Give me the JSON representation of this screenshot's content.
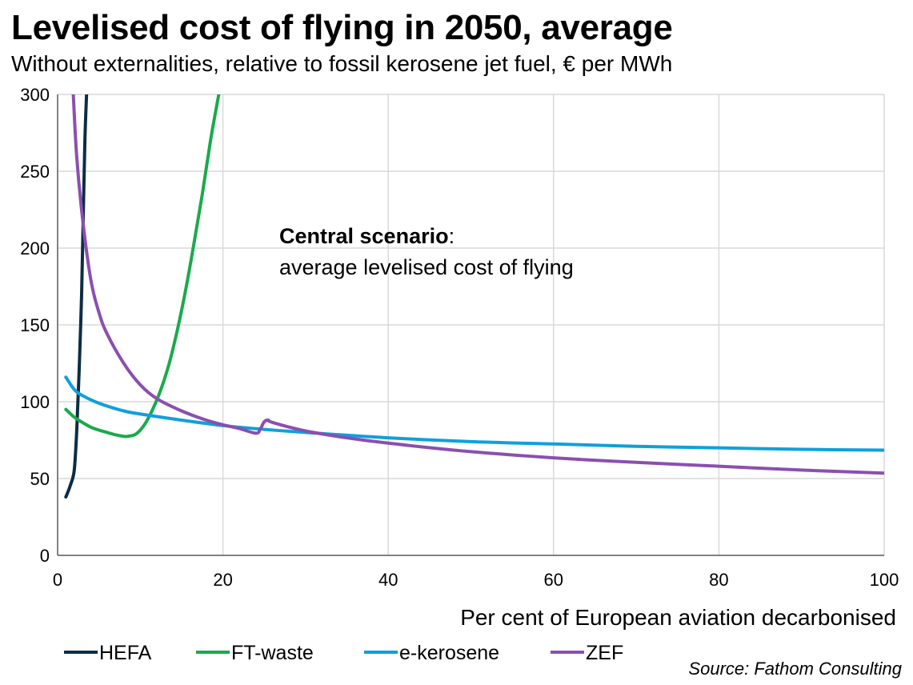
{
  "chart_data": {
    "type": "line",
    "title": "Levelised cost of flying in 2050, average",
    "subtitle": "Without externalities, relative to fossil kerosene jet fuel, € per MWh",
    "xlabel": "Per cent of European aviation decarbonised",
    "ylabel": "",
    "xlim": [
      0,
      100
    ],
    "ylim": [
      0,
      300
    ],
    "xticks": [
      0,
      20,
      40,
      60,
      80,
      100
    ],
    "yticks": [
      0,
      50,
      100,
      150,
      200,
      250,
      300
    ],
    "grid": true,
    "legend_position": "bottom",
    "annotation": {
      "bold": "Central scenario",
      "colon": ":",
      "line2": "average levelised cost of flying"
    },
    "source": "Source: Fathom Consulting",
    "series": [
      {
        "name": "HEFA",
        "color": "#0d2d45",
        "x": [
          1,
          1.5,
          2,
          2.3,
          2.6,
          2.9,
          3.1,
          3.3,
          3.5
        ],
        "y": [
          38,
          45,
          55,
          80,
          120,
          170,
          220,
          270,
          300
        ]
      },
      {
        "name": "FT-waste",
        "color": "#1aaa4b",
        "x": [
          1,
          2,
          3,
          4,
          5,
          6,
          7,
          8,
          8.5,
          9.5,
          10.5,
          11.5,
          12.5,
          13.5,
          14.5,
          15.5,
          16.5,
          17.5,
          18.5,
          19.5
        ],
        "y": [
          95,
          90,
          86.5,
          83.5,
          81.5,
          80,
          78.5,
          77.5,
          77.5,
          79,
          85,
          95,
          108,
          125,
          147,
          173,
          203,
          235,
          270,
          300
        ]
      },
      {
        "name": "e-kerosene",
        "color": "#0fa0db",
        "x": [
          1,
          2,
          3,
          5,
          8,
          10,
          15,
          20,
          25,
          30,
          40,
          50,
          60,
          70,
          80,
          90,
          100
        ],
        "y": [
          116,
          108,
          104,
          99,
          94,
          92,
          88,
          84.5,
          82,
          80,
          76.5,
          74,
          72.5,
          71,
          70,
          69,
          68.5
        ]
      },
      {
        "name": "ZEF",
        "color": "#8b4fb0",
        "x": [
          1.9,
          2.3,
          3,
          4,
          5,
          6,
          8,
          10,
          12,
          15,
          18,
          20,
          22,
          24,
          24.5,
          25,
          25.5,
          26,
          30,
          35,
          40,
          50,
          60,
          70,
          80,
          90,
          100
        ],
        "y": [
          300,
          260,
          220,
          180,
          158,
          144,
          125,
          111,
          102,
          94,
          88,
          85,
          82.5,
          79.5,
          82,
          87,
          88,
          86.5,
          81,
          76.5,
          73,
          67.5,
          63.5,
          60.5,
          58,
          55.5,
          53.5
        ]
      }
    ]
  }
}
